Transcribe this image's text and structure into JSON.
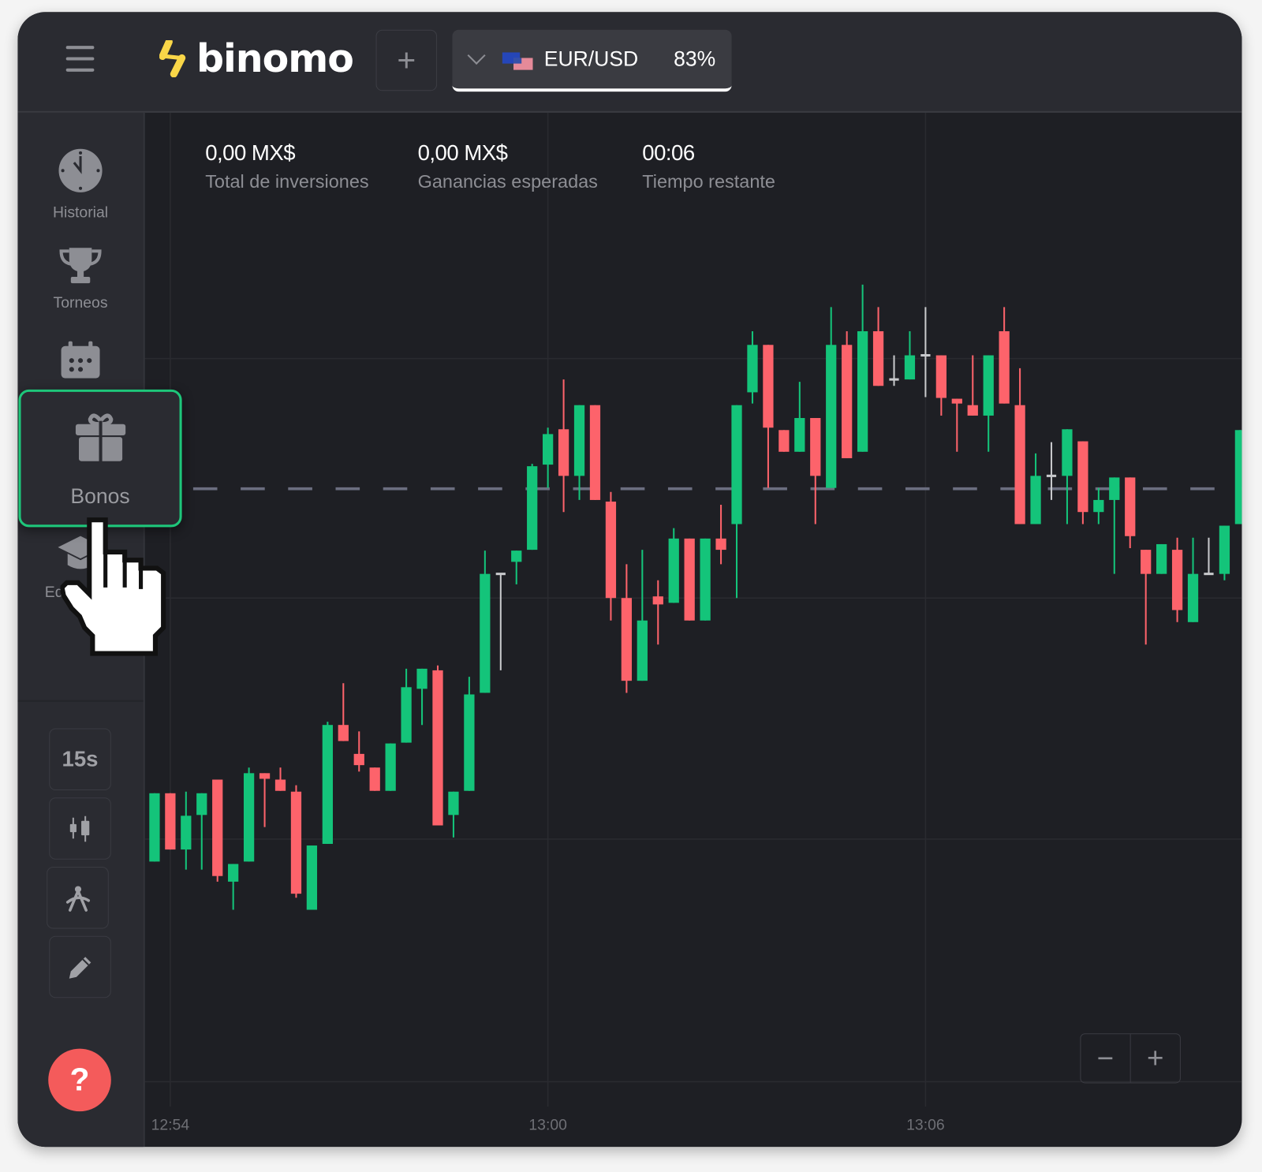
{
  "header": {
    "logo_text": "binomo",
    "add_asset_symbol": "+",
    "asset": {
      "name": "EUR/USD",
      "payout": "83%"
    }
  },
  "stats": [
    {
      "value": "0,00 MX$",
      "label": "Total de inversiones"
    },
    {
      "value": "0,00 MX$",
      "label": "Ganancias esperadas"
    },
    {
      "value": "00:06",
      "label": "Tiempo restante"
    }
  ],
  "sidebar": {
    "items": [
      {
        "label": "Historial",
        "icon": "clock-icon"
      },
      {
        "label": "Torneos",
        "icon": "trophy-icon"
      },
      {
        "label": "",
        "icon": "calendar-icon"
      },
      {
        "label": "Bonos",
        "icon": "gift-icon"
      },
      {
        "label": "Educación",
        "icon": "graduation-cap-icon"
      }
    ],
    "tools": {
      "timeframe": "15s",
      "chart_type_icon": "candlestick-icon",
      "indicators_icon": "compass-icon",
      "drawing_icon": "pencil-icon"
    },
    "help_label": "?"
  },
  "zoom": {
    "out": "−",
    "in": "+"
  },
  "colors": {
    "up": "#14c47a",
    "down": "#fd636b",
    "neutral": "#c8c9cc",
    "highlight": "#1ec67a",
    "help": "#f45b5b",
    "logo": "#f9d648"
  },
  "chart_data": {
    "type": "candlestick",
    "interval": "15s",
    "x_ticks": [
      {
        "label": "12:54",
        "index": 1
      },
      {
        "label": "13:00",
        "index": 25
      },
      {
        "label": "13:06",
        "index": 49
      }
    ],
    "ylim": [
      -5.5,
      123.2
    ],
    "strike_level": 76.4,
    "grid": true,
    "candles": [
      [
        30,
        38.5,
        30,
        38.5
      ],
      [
        38.5,
        38.5,
        31.5,
        31.5
      ],
      [
        31.5,
        38.7,
        29,
        35.7
      ],
      [
        35.8,
        38.5,
        29,
        38.5
      ],
      [
        40.2,
        40.2,
        27.5,
        28.2
      ],
      [
        27.5,
        29.7,
        24,
        29.7
      ],
      [
        30,
        41.7,
        30,
        41
      ],
      [
        41,
        41,
        34.3,
        40.3
      ],
      [
        40.2,
        41.7,
        38.8,
        38.8
      ],
      [
        38.7,
        39.5,
        25.5,
        26
      ],
      [
        24,
        32,
        24,
        32
      ],
      [
        32.2,
        47.4,
        32.2,
        47
      ],
      [
        47,
        52.2,
        45,
        45
      ],
      [
        43.4,
        46.2,
        41.2,
        42
      ],
      [
        41.7,
        41.7,
        38.8,
        38.8
      ],
      [
        38.8,
        44.7,
        38.8,
        44.7
      ],
      [
        44.8,
        54,
        44.8,
        51.7
      ],
      [
        51.5,
        54,
        47,
        54
      ],
      [
        53.8,
        54.4,
        34.5,
        34.5
      ],
      [
        35.8,
        38.7,
        33,
        38.7
      ],
      [
        38.8,
        53,
        38.8,
        50.8
      ],
      [
        51,
        68.7,
        51,
        65.8
      ],
      [
        65.8,
        65.8,
        53.8,
        65.8
      ],
      [
        67.3,
        68.7,
        64.5,
        68.7
      ],
      [
        68.8,
        79.5,
        68.8,
        79.2
      ],
      [
        79.4,
        84,
        76.5,
        83.2
      ],
      [
        83.8,
        90,
        73.5,
        78
      ],
      [
        78,
        86.8,
        75,
        86.8
      ],
      [
        86.8,
        86.8,
        75,
        75
      ],
      [
        74.8,
        76,
        60,
        62.8
      ],
      [
        62.8,
        67,
        51,
        52.5
      ],
      [
        52.5,
        68.8,
        52.5,
        60
      ],
      [
        63,
        65,
        57,
        62
      ],
      [
        62.2,
        71.5,
        62.2,
        70.2
      ],
      [
        70.2,
        70.2,
        60,
        60
      ],
      [
        60,
        70.2,
        60,
        70.2
      ],
      [
        70.2,
        74.4,
        67,
        68.8
      ],
      [
        72,
        86.8,
        62.8,
        86.8
      ],
      [
        88.4,
        96,
        87,
        94.3
      ],
      [
        94.3,
        94.3,
        76.5,
        84
      ],
      [
        83.7,
        83.7,
        81,
        81
      ],
      [
        81,
        89.7,
        81,
        85.2
      ],
      [
        85.2,
        85.2,
        72,
        78
      ],
      [
        76.5,
        99,
        76.5,
        94.3
      ],
      [
        94.3,
        96,
        80.2,
        80.2
      ],
      [
        81,
        101.8,
        81,
        96
      ],
      [
        96,
        99,
        89.2,
        89.2
      ],
      [
        90,
        93,
        89.2,
        90
      ],
      [
        90,
        96,
        90,
        93
      ],
      [
        93,
        99,
        87.8,
        93
      ],
      [
        93,
        93,
        85.5,
        87.7
      ],
      [
        87.6,
        87.6,
        81,
        87
      ],
      [
        86.8,
        93,
        85.5,
        85.5
      ],
      [
        85.5,
        93,
        81,
        93
      ],
      [
        96,
        99,
        87,
        87
      ],
      [
        86.8,
        91.4,
        72,
        72
      ],
      [
        72,
        80.8,
        72,
        78
      ],
      [
        78,
        82.2,
        75,
        78
      ],
      [
        78,
        83.8,
        72,
        83.8
      ],
      [
        82.3,
        82.3,
        72,
        73.5
      ],
      [
        73.5,
        76.5,
        72,
        75
      ],
      [
        75,
        77.8,
        65.8,
        77.8
      ],
      [
        77.8,
        77.8,
        69,
        70.5
      ],
      [
        68.8,
        68.8,
        57,
        65.8
      ],
      [
        65.8,
        69.5,
        65.8,
        69.5
      ],
      [
        68.8,
        70.3,
        59.8,
        61.3
      ],
      [
        59.8,
        70.3,
        59.8,
        65.8
      ],
      [
        65.8,
        70.3,
        65.8,
        65.8
      ],
      [
        65.8,
        71.8,
        65,
        71.8
      ],
      [
        72,
        83.7,
        72,
        83.7
      ]
    ]
  }
}
